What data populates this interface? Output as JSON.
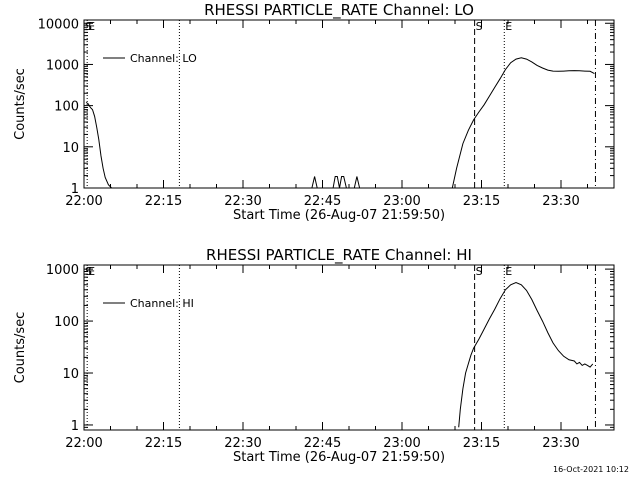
{
  "footer": {
    "timestamp": "16-Oct-2021 10:12"
  },
  "chart_data": [
    {
      "type": "line",
      "title": "RHESSI PARTICLE_RATE Channel: LO",
      "xlabel": "Start Time (26-Aug-07 21:59:50)",
      "ylabel": "Counts/sec",
      "yscale": "log",
      "ylim": [
        1,
        12000
      ],
      "xlim": [
        0,
        100
      ],
      "xticks": [
        {
          "x": 0,
          "label": "22:00"
        },
        {
          "x": 15,
          "label": "22:15"
        },
        {
          "x": 30,
          "label": "22:30"
        },
        {
          "x": 45,
          "label": "22:45"
        },
        {
          "x": 60,
          "label": "23:00"
        },
        {
          "x": 75,
          "label": "23:15"
        },
        {
          "x": 90,
          "label": "23:30"
        }
      ],
      "yticks": [
        {
          "y": 1,
          "label": "1"
        },
        {
          "y": 10,
          "label": "10"
        },
        {
          "y": 100,
          "label": "100"
        },
        {
          "y": 1000,
          "label": "1000"
        },
        {
          "y": 10000,
          "label": "10000"
        }
      ],
      "legend": {
        "label": "Channel: LO",
        "position": "top-left"
      },
      "vlines": [
        {
          "x": 0.0,
          "style": "dashed",
          "label": "S"
        },
        {
          "x": 0.6,
          "style": "dotted",
          "label": "E"
        },
        {
          "x": 18.0,
          "style": "dotted",
          "label": ""
        },
        {
          "x": 73.7,
          "style": "dashed",
          "label": "S"
        },
        {
          "x": 79.3,
          "style": "dotted",
          "label": "E"
        },
        {
          "x": 96.5,
          "style": "dashdot",
          "label": ""
        }
      ],
      "series": [
        {
          "x": [
            0.4,
            0.8,
            1.2,
            1.6,
            2.0,
            2.4,
            2.8,
            3.2,
            3.6,
            4.0,
            4.6,
            5.2,
            43.0,
            43.5,
            44.0,
            47.0,
            47.4,
            47.8,
            48.2,
            48.6,
            49.0,
            49.5,
            50.0,
            51.0,
            51.5,
            52.0,
            69.5,
            70.3,
            71.5,
            72.5,
            73.5,
            74.5,
            75.5,
            76.5,
            77.5,
            78.5,
            79.5,
            80.5,
            81.5,
            82.5,
            83.5,
            84.5,
            85.5,
            86.5,
            87.5,
            88.5,
            89.5,
            90.5,
            91.5,
            92.5,
            93.5,
            94.5,
            95.5,
            96.3
          ],
          "y": [
            120,
            110,
            90,
            80,
            55,
            30,
            15,
            6,
            3,
            1.8,
            1.2,
            1,
            1,
            1.9,
            1,
            1,
            1.9,
            1.9,
            1,
            1.9,
            1.9,
            1,
            1,
            1,
            1.9,
            1,
            1,
            3,
            12,
            25,
            45,
            70,
            105,
            170,
            280,
            450,
            750,
            1100,
            1350,
            1450,
            1350,
            1150,
            950,
            820,
            730,
            690,
            680,
            690,
            700,
            710,
            700,
            690,
            680,
            600
          ]
        }
      ]
    },
    {
      "type": "line",
      "title": "RHESSI PARTICLE_RATE Channel: HI",
      "xlabel": "Start Time (26-Aug-07 21:59:50)",
      "ylabel": "Counts/sec",
      "yscale": "log",
      "ylim": [
        0.8,
        1200
      ],
      "xlim": [
        0,
        100
      ],
      "xticks": [
        {
          "x": 0,
          "label": "22:00"
        },
        {
          "x": 15,
          "label": "22:15"
        },
        {
          "x": 30,
          "label": "22:30"
        },
        {
          "x": 45,
          "label": "22:45"
        },
        {
          "x": 60,
          "label": "23:00"
        },
        {
          "x": 75,
          "label": "23:15"
        },
        {
          "x": 90,
          "label": "23:30"
        }
      ],
      "yticks": [
        {
          "y": 1,
          "label": "1"
        },
        {
          "y": 10,
          "label": "10"
        },
        {
          "y": 100,
          "label": "100"
        },
        {
          "y": 1000,
          "label": "1000"
        }
      ],
      "legend": {
        "label": "Channel: HI",
        "position": "top-left"
      },
      "vlines": [
        {
          "x": 0.0,
          "style": "dashed",
          "label": "S"
        },
        {
          "x": 0.6,
          "style": "dotted",
          "label": "E"
        },
        {
          "x": 18.0,
          "style": "dotted",
          "label": ""
        },
        {
          "x": 73.7,
          "style": "dashed",
          "label": "S"
        },
        {
          "x": 79.3,
          "style": "dotted",
          "label": "E"
        },
        {
          "x": 96.5,
          "style": "dashdot",
          "label": ""
        }
      ],
      "series": [
        {
          "x": [
            70.7,
            71.0,
            71.5,
            72.0,
            72.5,
            73.0,
            73.5,
            74.5,
            75.5,
            76.5,
            77.5,
            78.5,
            79.5,
            80.5,
            81.5,
            82.5,
            83.5,
            84.5,
            85.5,
            86.5,
            87.5,
            88.5,
            89.5,
            90.5,
            91.5,
            92.5,
            93.0,
            93.5,
            94.0,
            94.5,
            95.0,
            95.5,
            96.0
          ],
          "y": [
            0.9,
            2,
            5,
            10,
            15,
            22,
            30,
            45,
            70,
            110,
            170,
            270,
            400,
            500,
            550,
            500,
            390,
            260,
            160,
            100,
            60,
            38,
            27,
            21,
            18,
            17,
            15,
            16,
            14,
            15,
            14,
            13,
            15
          ]
        }
      ]
    }
  ]
}
